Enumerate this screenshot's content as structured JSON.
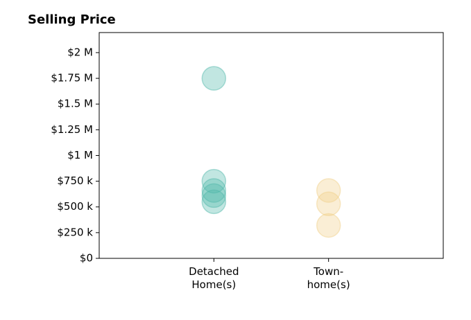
{
  "chart_data": {
    "type": "strip",
    "title": "Selling Price",
    "categories": [
      "Detached\nHome(s)",
      "Town-\nhome(s)"
    ],
    "values": [
      [
        1750000,
        750000,
        660000,
        610000,
        550000
      ],
      [
        660000,
        530000,
        320000
      ]
    ],
    "colors": [
      "#4db6a9",
      "#f0cf86"
    ],
    "ylim": [
      0,
      2195000
    ],
    "yticks": [
      {
        "value": 0,
        "label": "$0"
      },
      {
        "value": 250000,
        "label": "$250 k"
      },
      {
        "value": 500000,
        "label": "$500 k"
      },
      {
        "value": 750000,
        "label": "$750 k"
      },
      {
        "value": 1000000,
        "label": "$1 M"
      },
      {
        "value": 1250000,
        "label": "$1.25 M"
      },
      {
        "value": 1500000,
        "label": "$1.5 M"
      },
      {
        "value": 1750000,
        "label": "$1.75 M"
      },
      {
        "value": 2000000,
        "label": "$2 M"
      }
    ]
  }
}
